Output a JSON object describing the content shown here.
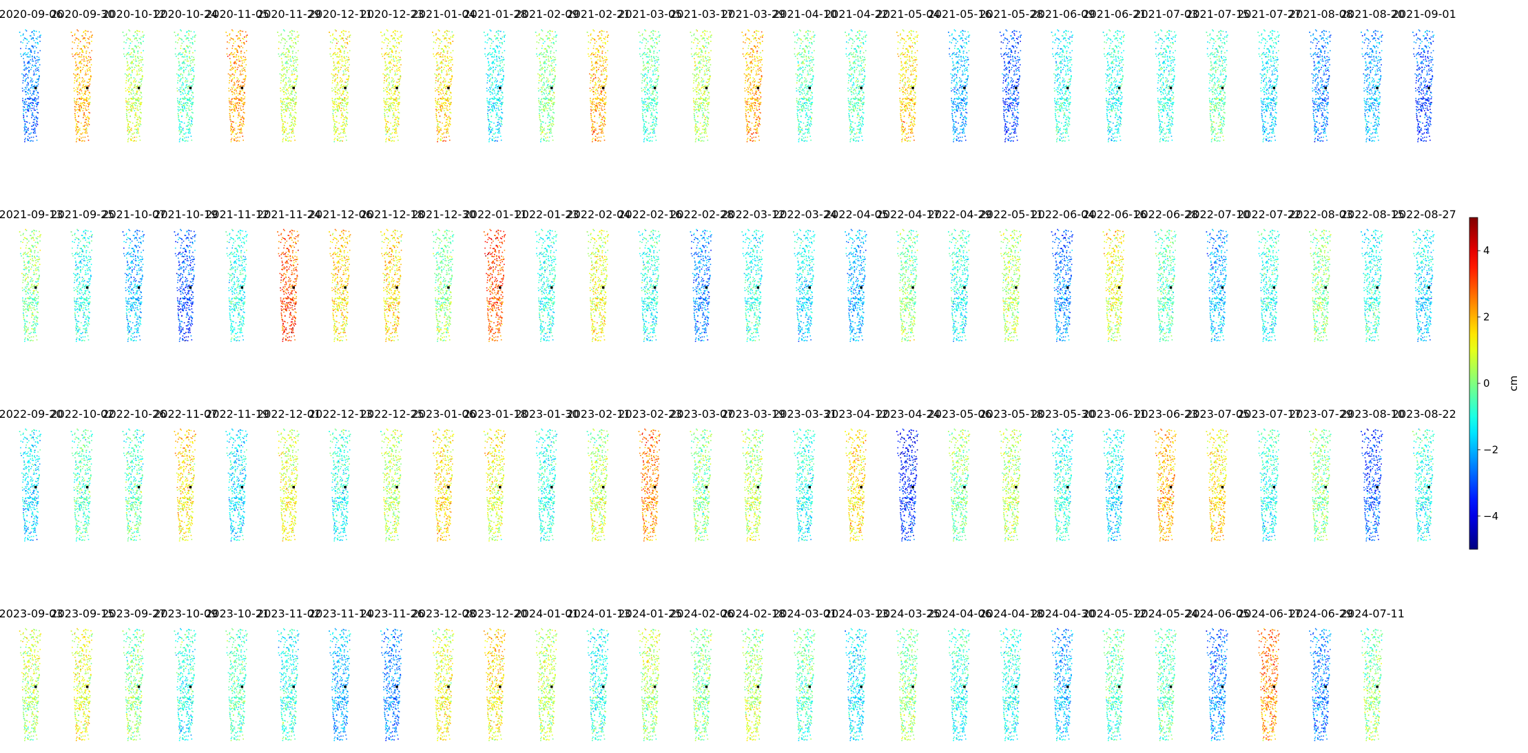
{
  "chart_data": {
    "type": "scatter",
    "title": "",
    "colormap": "jet",
    "colorbar": {
      "label": "cm",
      "range": [
        -5,
        5
      ],
      "ticks": [
        -4,
        -2,
        0,
        2,
        4
      ],
      "tick_labels": [
        "−4",
        "−2",
        "0",
        "2",
        "4"
      ]
    },
    "grid": false,
    "rows": [
      {
        "dates": [
          "2020-09-06",
          "2020-09-30",
          "2020-10-12",
          "2020-10-24",
          "2020-11-05",
          "2020-11-29",
          "2020-12-11",
          "2020-12-23",
          "2021-01-04",
          "2021-01-28",
          "2021-02-09",
          "2021-02-21",
          "2021-03-05",
          "2021-03-17",
          "2021-03-29",
          "2021-04-10",
          "2021-04-22",
          "2021-05-04",
          "2021-05-16",
          "2021-05-28",
          "2021-06-09",
          "2021-06-21",
          "2021-07-03",
          "2021-07-15",
          "2021-07-27",
          "2021-08-08",
          "2021-08-20",
          "2021-09-01"
        ],
        "mean_values": [
          -2.5,
          2.0,
          0.5,
          -0.5,
          2.2,
          0.5,
          1.0,
          1.0,
          1.5,
          -1.2,
          0.0,
          2.0,
          -0.5,
          0.5,
          2.0,
          -0.5,
          -0.5,
          1.5,
          -2.0,
          -3.0,
          -1.0,
          -1.0,
          -1.0,
          -0.5,
          -1.5,
          -2.5,
          -2.0,
          -3.0
        ]
      },
      {
        "dates": [
          "2021-09-13",
          "2021-09-25",
          "2021-10-07",
          "2021-10-19",
          "2021-11-12",
          "2021-11-24",
          "2021-12-06",
          "2021-12-18",
          "2021-12-30",
          "2022-01-11",
          "2022-01-23",
          "2022-02-04",
          "2022-02-16",
          "2022-02-28",
          "2022-03-12",
          "2022-03-24",
          "2022-04-05",
          "2022-04-17",
          "2022-04-29",
          "2022-05-11",
          "2022-06-04",
          "2022-06-16",
          "2022-06-28",
          "2022-07-10",
          "2022-07-22",
          "2022-08-03",
          "2022-08-15",
          "2022-08-27"
        ],
        "mean_values": [
          0.0,
          -1.0,
          -2.0,
          -3.0,
          -1.0,
          3.0,
          1.5,
          1.5,
          0.0,
          3.0,
          -1.0,
          1.0,
          -1.0,
          -2.5,
          -1.0,
          -1.5,
          -2.0,
          0.0,
          -1.0,
          0.5,
          -2.5,
          1.0,
          -0.5,
          -2.0,
          -1.0,
          0.0,
          -1.0,
          -1.5
        ]
      },
      {
        "dates": [
          "2022-09-20",
          "2022-10-02",
          "2022-10-26",
          "2022-11-07",
          "2022-11-19",
          "2022-12-01",
          "2022-12-13",
          "2022-12-25",
          "2023-01-06",
          "2023-01-18",
          "2023-01-30",
          "2023-02-11",
          "2023-02-23",
          "2023-03-07",
          "2023-03-19",
          "2023-03-31",
          "2023-04-12",
          "2023-04-24",
          "2023-05-06",
          "2023-05-18",
          "2023-05-30",
          "2023-06-11",
          "2023-06-23",
          "2023-07-05",
          "2023-07-17",
          "2023-07-29",
          "2023-08-10",
          "2023-08-22"
        ],
        "mean_values": [
          -1.5,
          -0.5,
          -0.5,
          1.5,
          -1.5,
          1.0,
          -1.0,
          0.5,
          1.5,
          1.0,
          -1.0,
          0.5,
          2.5,
          0.0,
          0.5,
          -1.0,
          1.5,
          -3.5,
          0.0,
          0.5,
          -1.0,
          -1.5,
          2.0,
          1.5,
          -1.0,
          0.0,
          -3.0,
          -1.0
        ]
      },
      {
        "dates": [
          "2023-09-03",
          "2023-09-15",
          "2023-09-27",
          "2023-10-09",
          "2023-10-21",
          "2023-11-02",
          "2023-11-14",
          "2023-11-26",
          "2023-12-08",
          "2023-12-20",
          "2024-01-01",
          "2024-01-13",
          "2024-01-25",
          "2024-02-06",
          "2024-02-18",
          "2024-03-01",
          "2024-03-13",
          "2024-03-25",
          "2024-04-06",
          "2024-04-18",
          "2024-04-30",
          "2024-05-12",
          "2024-05-24",
          "2024-06-05",
          "2024-06-17",
          "2024-06-29",
          "2024-07-11"
        ],
        "mean_values": [
          0.5,
          1.0,
          0.0,
          -1.0,
          -0.5,
          -1.0,
          -2.0,
          -2.5,
          1.0,
          1.5,
          0.5,
          -1.0,
          0.5,
          0.0,
          0.5,
          -0.5,
          -1.5,
          0.0,
          -1.0,
          -1.0,
          -2.0,
          -0.5,
          -0.5,
          -2.5,
          2.5,
          -2.5,
          0.0
        ]
      }
    ]
  }
}
